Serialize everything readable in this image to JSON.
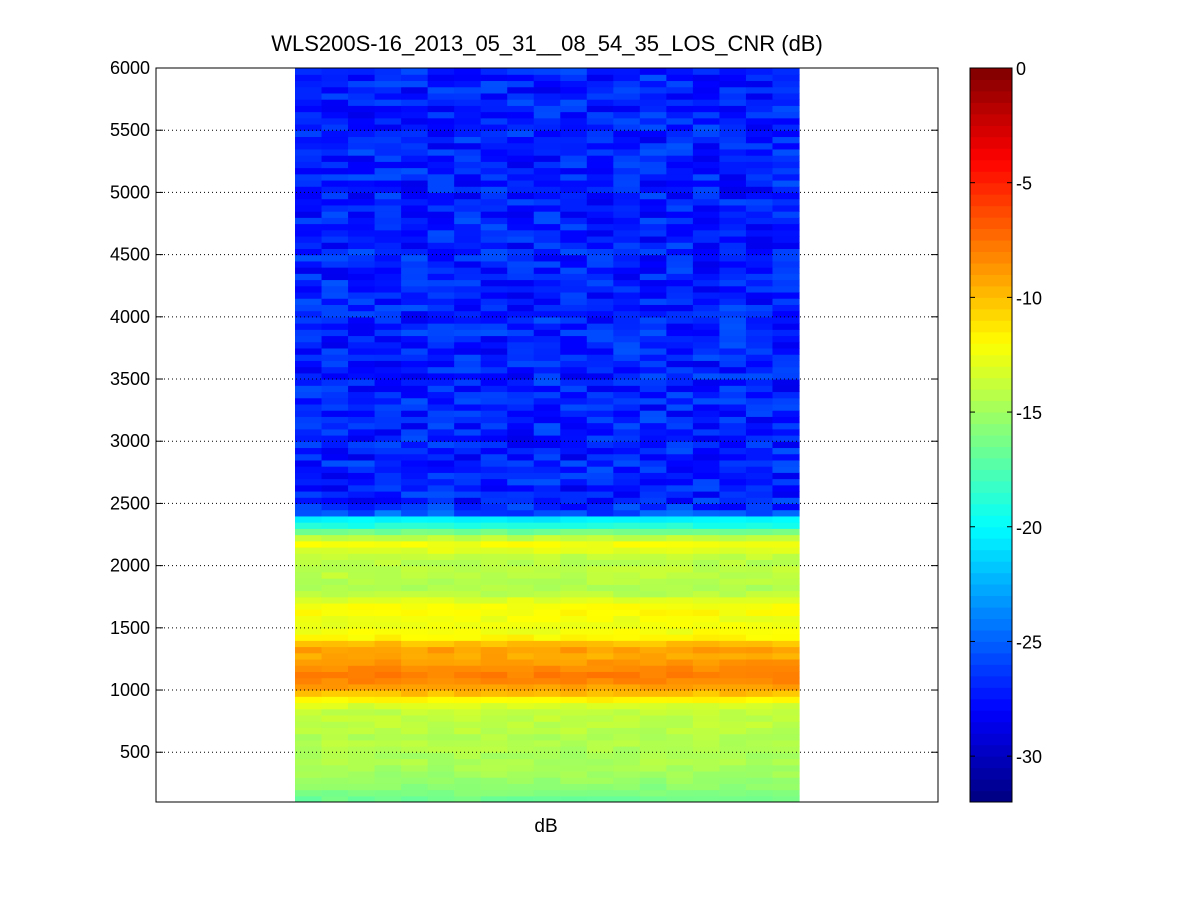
{
  "chart_data": {
    "type": "heatmap",
    "title": "WLS200S-16_2013_05_31__08_54_35_LOS_CNR (dB)",
    "xlabel": "dB",
    "ylabel": "",
    "ylim": [
      100,
      6000
    ],
    "yticks": [
      500,
      1000,
      1500,
      2000,
      2500,
      3000,
      3500,
      4000,
      4500,
      5000,
      5500,
      6000
    ],
    "grid": "y-dotted",
    "colormap": "jet",
    "colorbar": {
      "clim": [
        -32,
        0
      ],
      "ticks": [
        0,
        -5,
        -10,
        -15,
        -20,
        -25,
        -30
      ]
    },
    "columns": 19,
    "row_height": 50,
    "profile": [
      {
        "range": 100,
        "cnr": -16.5
      },
      {
        "range": 150,
        "cnr": -16.0
      },
      {
        "range": 200,
        "cnr": -15.6
      },
      {
        "range": 250,
        "cnr": -15.3
      },
      {
        "range": 300,
        "cnr": -15.0
      },
      {
        "range": 350,
        "cnr": -14.8
      },
      {
        "range": 400,
        "cnr": -14.6
      },
      {
        "range": 450,
        "cnr": -14.7
      },
      {
        "range": 500,
        "cnr": -14.5
      },
      {
        "range": 550,
        "cnr": -14.3
      },
      {
        "range": 600,
        "cnr": -14.4
      },
      {
        "range": 650,
        "cnr": -14.2
      },
      {
        "range": 700,
        "cnr": -14.1
      },
      {
        "range": 750,
        "cnr": -14.0
      },
      {
        "range": 800,
        "cnr": -13.9
      },
      {
        "range": 850,
        "cnr": -13.2
      },
      {
        "range": 900,
        "cnr": -11.8
      },
      {
        "range": 950,
        "cnr": -10.0
      },
      {
        "range": 1000,
        "cnr": -9.0
      },
      {
        "range": 1050,
        "cnr": -8.3
      },
      {
        "range": 1100,
        "cnr": -8.0
      },
      {
        "range": 1150,
        "cnr": -8.3
      },
      {
        "range": 1200,
        "cnr": -8.8
      },
      {
        "range": 1250,
        "cnr": -9.3
      },
      {
        "range": 1300,
        "cnr": -9.0
      },
      {
        "range": 1350,
        "cnr": -10.0
      },
      {
        "range": 1400,
        "cnr": -11.8
      },
      {
        "range": 1450,
        "cnr": -12.3
      },
      {
        "range": 1500,
        "cnr": -12.5
      },
      {
        "range": 1550,
        "cnr": -12.4
      },
      {
        "range": 1600,
        "cnr": -12.0
      },
      {
        "range": 1650,
        "cnr": -12.3
      },
      {
        "range": 1700,
        "cnr": -13.0
      },
      {
        "range": 1750,
        "cnr": -14.2
      },
      {
        "range": 1800,
        "cnr": -14.6
      },
      {
        "range": 1850,
        "cnr": -14.3
      },
      {
        "range": 1900,
        "cnr": -14.1
      },
      {
        "range": 1950,
        "cnr": -14.0
      },
      {
        "range": 2000,
        "cnr": -14.2
      },
      {
        "range": 2050,
        "cnr": -14.0
      },
      {
        "range": 2100,
        "cnr": -13.0
      },
      {
        "range": 2150,
        "cnr": -12.3
      },
      {
        "range": 2200,
        "cnr": -14.0
      },
      {
        "range": 2250,
        "cnr": -16.5
      },
      {
        "range": 2300,
        "cnr": -19.0
      },
      {
        "range": 2350,
        "cnr": -20.5
      },
      {
        "range": 2400,
        "cnr": -25.5
      },
      {
        "range": 2450,
        "cnr": -26.5
      },
      {
        "range": 2500,
        "cnr": -27.0
      },
      {
        "range": 2550,
        "cnr": -27.0
      },
      {
        "range": 2600,
        "cnr": -27.2
      },
      {
        "range": 2650,
        "cnr": -27.0
      },
      {
        "range": 2700,
        "cnr": -27.1
      },
      {
        "range": 2750,
        "cnr": -27.0
      },
      {
        "range": 2800,
        "cnr": -27.0
      },
      {
        "range": 2850,
        "cnr": -27.2
      },
      {
        "range": 2900,
        "cnr": -27.0
      },
      {
        "range": 2950,
        "cnr": -27.0
      },
      {
        "range": 3000,
        "cnr": -27.1
      },
      {
        "range": 3050,
        "cnr": -27.0
      },
      {
        "range": 3100,
        "cnr": -27.0
      },
      {
        "range": 3150,
        "cnr": -27.0
      },
      {
        "range": 3200,
        "cnr": -27.1
      },
      {
        "range": 3250,
        "cnr": -27.0
      },
      {
        "range": 3300,
        "cnr": -27.0
      },
      {
        "range": 3350,
        "cnr": -27.0
      },
      {
        "range": 3400,
        "cnr": -27.1
      },
      {
        "range": 3450,
        "cnr": -27.0
      },
      {
        "range": 3500,
        "cnr": -27.0
      },
      {
        "range": 3550,
        "cnr": -27.0
      },
      {
        "range": 3600,
        "cnr": -27.1
      },
      {
        "range": 3650,
        "cnr": -27.0
      },
      {
        "range": 3700,
        "cnr": -27.0
      },
      {
        "range": 3750,
        "cnr": -27.0
      },
      {
        "range": 3800,
        "cnr": -27.1
      },
      {
        "range": 3850,
        "cnr": -27.0
      },
      {
        "range": 3900,
        "cnr": -27.0
      },
      {
        "range": 3950,
        "cnr": -27.0
      },
      {
        "range": 4000,
        "cnr": -27.1
      },
      {
        "range": 4050,
        "cnr": -27.0
      },
      {
        "range": 4100,
        "cnr": -27.0
      },
      {
        "range": 4150,
        "cnr": -27.0
      },
      {
        "range": 4200,
        "cnr": -27.1
      },
      {
        "range": 4250,
        "cnr": -27.0
      },
      {
        "range": 4300,
        "cnr": -27.0
      },
      {
        "range": 4350,
        "cnr": -27.0
      },
      {
        "range": 4400,
        "cnr": -27.1
      },
      {
        "range": 4450,
        "cnr": -27.0
      },
      {
        "range": 4500,
        "cnr": -27.0
      },
      {
        "range": 4550,
        "cnr": -27.0
      },
      {
        "range": 4600,
        "cnr": -27.1
      },
      {
        "range": 4650,
        "cnr": -27.0
      },
      {
        "range": 4700,
        "cnr": -27.0
      },
      {
        "range": 4750,
        "cnr": -27.0
      },
      {
        "range": 4800,
        "cnr": -27.1
      },
      {
        "range": 4850,
        "cnr": -27.0
      },
      {
        "range": 4900,
        "cnr": -27.0
      },
      {
        "range": 4950,
        "cnr": -27.0
      },
      {
        "range": 5000,
        "cnr": -27.1
      },
      {
        "range": 5050,
        "cnr": -27.0
      },
      {
        "range": 5100,
        "cnr": -27.0
      },
      {
        "range": 5150,
        "cnr": -27.0
      },
      {
        "range": 5200,
        "cnr": -27.1
      },
      {
        "range": 5250,
        "cnr": -27.0
      },
      {
        "range": 5300,
        "cnr": -27.0
      },
      {
        "range": 5350,
        "cnr": -27.0
      },
      {
        "range": 5400,
        "cnr": -27.1
      },
      {
        "range": 5450,
        "cnr": -27.0
      },
      {
        "range": 5500,
        "cnr": -27.0
      },
      {
        "range": 5550,
        "cnr": -27.0
      },
      {
        "range": 5600,
        "cnr": -27.1
      },
      {
        "range": 5650,
        "cnr": -27.0
      },
      {
        "range": 5700,
        "cnr": -27.0
      },
      {
        "range": 5750,
        "cnr": -27.0
      },
      {
        "range": 5800,
        "cnr": -27.1
      },
      {
        "range": 5850,
        "cnr": -27.0
      },
      {
        "range": 5900,
        "cnr": -27.0
      },
      {
        "range": 5950,
        "cnr": -27.0
      }
    ]
  }
}
